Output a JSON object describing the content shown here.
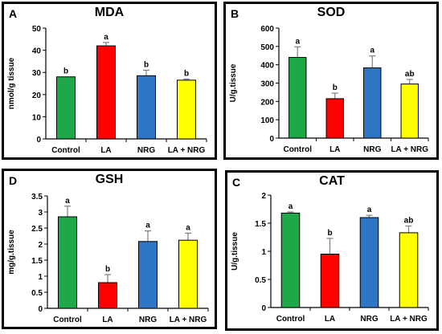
{
  "chart_data": [
    {
      "type": "bar",
      "panel_letter": "A",
      "title": "MDA",
      "ylabel": "nmol/g tissue",
      "ylim": [
        0,
        50
      ],
      "yticks": [
        0,
        10,
        20,
        30,
        40,
        50
      ],
      "ytick_labels": [
        "0",
        "10",
        "20",
        "30",
        "40",
        "50"
      ],
      "categories": [
        "Control",
        "LA",
        "NRG",
        "LA + NRG"
      ],
      "values": [
        28,
        42,
        28.5,
        26.5
      ],
      "errors": [
        0,
        1.5,
        2.5,
        0.5
      ],
      "labels": [
        "b",
        "a",
        "b",
        "b"
      ],
      "colors": [
        "#1fa84a",
        "#ff0000",
        "#2f75c6",
        "#ffff00"
      ]
    },
    {
      "type": "bar",
      "panel_letter": "B",
      "title": "SOD",
      "ylabel": "U/g.tissue",
      "ylim": [
        0,
        600
      ],
      "yticks": [
        0,
        100,
        200,
        300,
        400,
        500,
        600
      ],
      "ytick_labels": [
        "0",
        "100",
        "200",
        "300",
        "400",
        "500",
        "600"
      ],
      "categories": [
        "Control",
        "LA",
        "NRG",
        "LA + NRG"
      ],
      "values": [
        440,
        215,
        383,
        295
      ],
      "errors": [
        58,
        30,
        65,
        25
      ],
      "labels": [
        "a",
        "b",
        "a",
        "ab"
      ],
      "colors": [
        "#1fa84a",
        "#ff0000",
        "#2f75c6",
        "#ffff00"
      ]
    },
    {
      "type": "bar",
      "panel_letter": "D",
      "title": "GSH",
      "ylabel": "mg/g.tissue",
      "ylim": [
        0,
        3.5
      ],
      "yticks": [
        0,
        0.5,
        1,
        1.5,
        2,
        2.5,
        3,
        3.5
      ],
      "ytick_labels": [
        "0",
        "0.5",
        "1",
        "1.5",
        "2",
        "2.5",
        "3",
        "3.5"
      ],
      "categories": [
        "Control",
        "LA",
        "NRG",
        "LA + NRG"
      ],
      "values": [
        2.85,
        0.8,
        2.08,
        2.12
      ],
      "errors": [
        0.33,
        0.25,
        0.33,
        0.22
      ],
      "labels": [
        "a",
        "b",
        "a",
        "a"
      ],
      "colors": [
        "#1fa84a",
        "#ff0000",
        "#2f75c6",
        "#ffff00"
      ]
    },
    {
      "type": "bar",
      "panel_letter": "C",
      "title": "CAT",
      "ylabel": "U/g.tissue",
      "ylim": [
        0,
        2
      ],
      "yticks": [
        0,
        0.5,
        1,
        1.5,
        2
      ],
      "ytick_labels": [
        "0",
        "0.5",
        "1",
        "1.5",
        "2"
      ],
      "categories": [
        "Control",
        "LA",
        "NRG",
        "LA + NRG"
      ],
      "values": [
        1.68,
        0.95,
        1.6,
        1.33
      ],
      "errors": [
        0.02,
        0.28,
        0.04,
        0.12
      ],
      "labels": [
        "a",
        "b",
        "a",
        "ab"
      ],
      "colors": [
        "#1fa84a",
        "#ff0000",
        "#2f75c6",
        "#ffff00"
      ]
    }
  ]
}
